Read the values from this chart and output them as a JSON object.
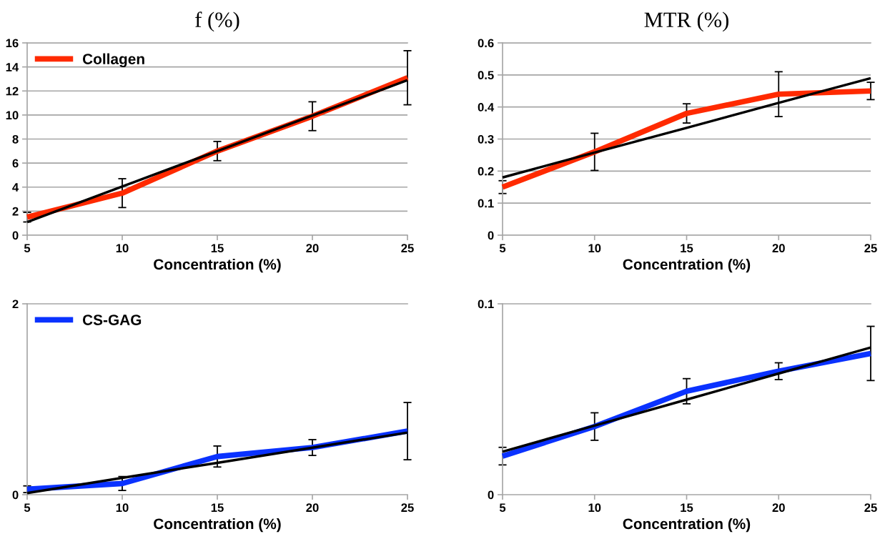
{
  "chart_data": [
    {
      "type": "line",
      "title": "f (%)",
      "xlabel": "Concentration (%)",
      "x": [
        5,
        10,
        15,
        20,
        25
      ],
      "xlim": [
        5,
        25
      ],
      "xticks": [
        5,
        10,
        15,
        20,
        25
      ],
      "ylim": [
        0,
        16
      ],
      "yticks": [
        0,
        2,
        4,
        6,
        8,
        10,
        12,
        14,
        16
      ],
      "grid": "y",
      "legend": "top left",
      "marker": "none",
      "series": [
        {
          "name": "Collagen",
          "color": "#ff2a00",
          "values": [
            1.5,
            3.5,
            7.0,
            9.9,
            13.1
          ],
          "errors": [
            0.4,
            1.2,
            0.8,
            1.2,
            2.25
          ]
        },
        {
          "type": "line",
          "color": "#000000",
          "values": [
            1.1,
            4.05,
            7.0,
            9.95,
            12.9
          ]
        }
      ]
    },
    {
      "type": "line",
      "title": "MTR (%)",
      "xlabel": "Concentration (%)",
      "x": [
        5,
        10,
        15,
        20,
        25
      ],
      "xlim": [
        5,
        25
      ],
      "xticks": [
        5,
        10,
        15,
        20,
        25
      ],
      "ylim": [
        0,
        0.6
      ],
      "yticks": [
        0,
        0.1,
        0.2,
        0.3,
        0.4,
        0.5,
        0.6
      ],
      "grid": "y",
      "marker": "none",
      "series": [
        {
          "color": "#ff2a00",
          "values": [
            0.15,
            0.26,
            0.38,
            0.44,
            0.45
          ],
          "errors": [
            0.02,
            0.058,
            0.03,
            0.07,
            0.027
          ]
        },
        {
          "type": "line",
          "color": "#000000",
          "values": [
            0.18,
            0.258,
            0.335,
            0.413,
            0.49
          ]
        }
      ]
    },
    {
      "type": "line",
      "xlabel": "Concentration (%)",
      "x": [
        5,
        10,
        15,
        20,
        25
      ],
      "xlim": [
        5,
        25
      ],
      "xticks": [
        5,
        10,
        15,
        20,
        25
      ],
      "ylim": [
        0,
        2
      ],
      "yticks": [
        0,
        2
      ],
      "legend": "top left",
      "marker": "none",
      "series": [
        {
          "name": "CS-GAG",
          "color": "#0a32ff",
          "values": [
            0.057,
            0.117,
            0.4,
            0.494,
            0.666
          ],
          "errors": [
            0.035,
            0.073,
            0.11,
            0.083,
            0.3
          ]
        },
        {
          "type": "line",
          "color": "#000000",
          "values": [
            0.017,
            0.176,
            0.334,
            0.493,
            0.651
          ]
        }
      ]
    },
    {
      "type": "line",
      "xlabel": "Concentration (%)",
      "x": [
        5,
        10,
        15,
        20,
        25
      ],
      "xlim": [
        5,
        25
      ],
      "xticks": [
        5,
        10,
        15,
        20,
        25
      ],
      "ylim": [
        0,
        0.1
      ],
      "yticks": [
        0,
        0.1
      ],
      "marker": "none",
      "series": [
        {
          "color": "#0a32ff",
          "values": [
            0.0202,
            0.0357,
            0.0542,
            0.0647,
            0.074
          ],
          "errors": [
            0.0046,
            0.0072,
            0.0066,
            0.0044,
            0.0142
          ]
        },
        {
          "type": "line",
          "color": "#000000",
          "values": [
            0.0225,
            0.0362,
            0.0498,
            0.0635,
            0.0771
          ]
        }
      ]
    }
  ]
}
